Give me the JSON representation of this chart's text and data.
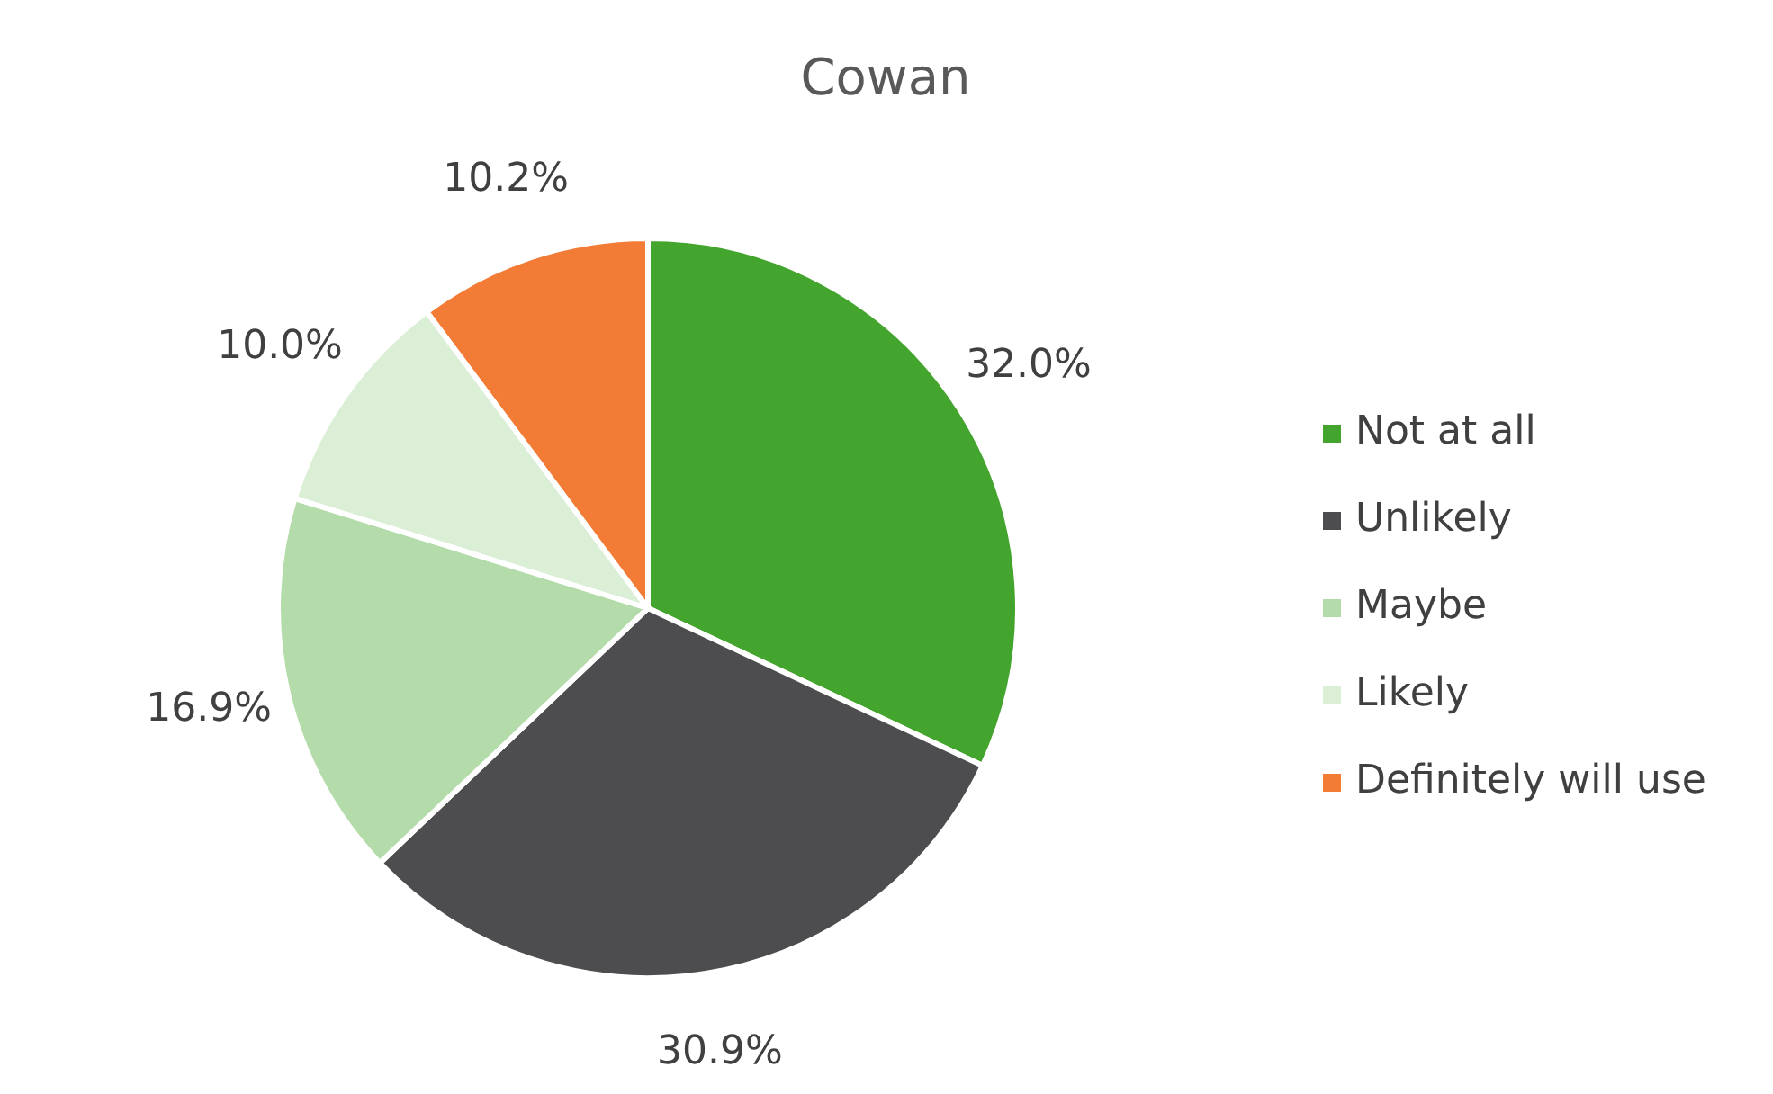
{
  "chart_data": {
    "type": "pie",
    "title": "Cowan",
    "categories": [
      "Not at all",
      "Unlikely",
      "Maybe",
      "Likely",
      "Definitely will use"
    ],
    "values": [
      32.0,
      30.9,
      16.9,
      10.0,
      10.2
    ],
    "value_labels": [
      "32.0%",
      "30.9%",
      "16.9%",
      "10.0%",
      "10.2%"
    ],
    "colors": [
      "#43a52d",
      "#4d4d4f",
      "#b4dcaa",
      "#dbeed6",
      "#f27b35"
    ],
    "legend": "right"
  }
}
